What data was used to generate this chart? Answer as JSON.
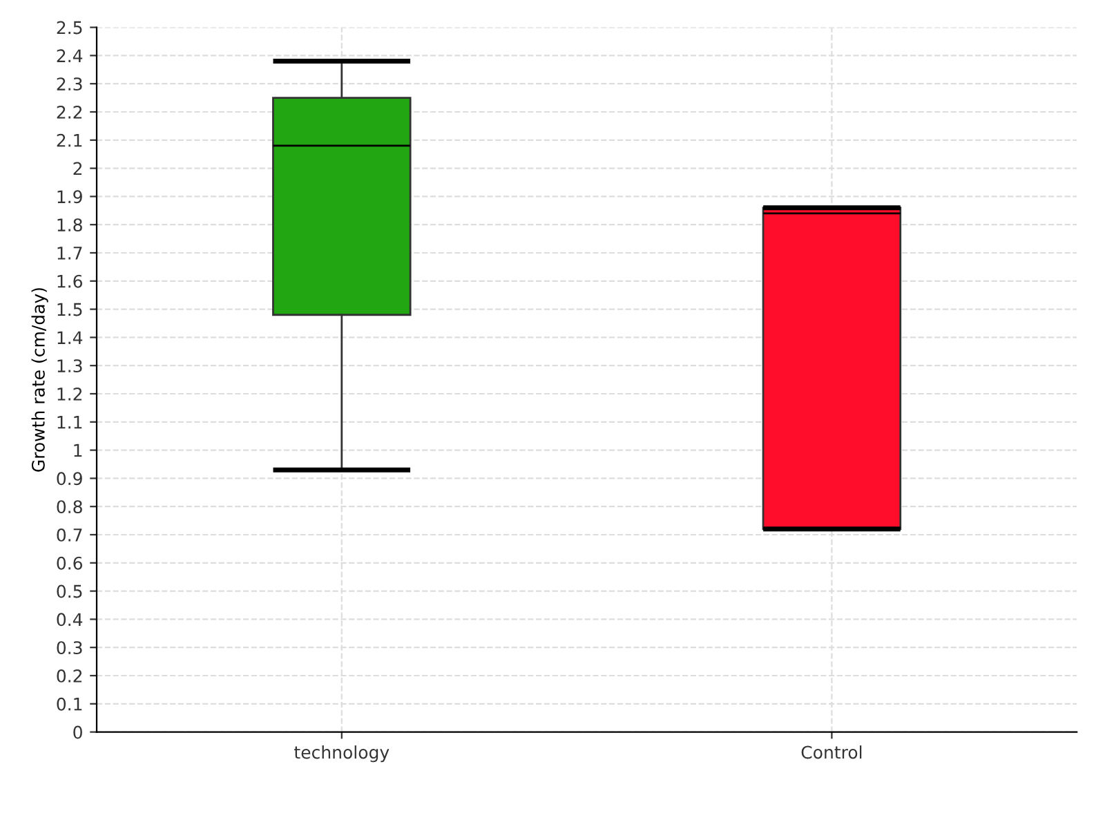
{
  "chart_data": {
    "type": "box",
    "ylabel": "Growth rate (cm/day)",
    "categories": [
      "technology",
      "Control"
    ],
    "boxes": [
      {
        "low": 0.93,
        "q1": 1.48,
        "median": 2.08,
        "q3": 2.25,
        "high": 2.38
      },
      {
        "low": 0.72,
        "q1": 0.72,
        "median": 1.84,
        "q3": 1.86,
        "high": 1.86
      }
    ],
    "colors": [
      "#22a612",
      "#ff0d2a"
    ],
    "ylim": [
      0,
      2.5
    ],
    "yticks": [
      0,
      0.1,
      0.2,
      0.3,
      0.4,
      0.5,
      0.6,
      0.7,
      0.8,
      0.9,
      1,
      1.1,
      1.2,
      1.3,
      1.4,
      1.5,
      1.6,
      1.7,
      1.8,
      1.9,
      2,
      2.1,
      2.2,
      2.3,
      2.4,
      2.5
    ],
    "grid": true
  }
}
